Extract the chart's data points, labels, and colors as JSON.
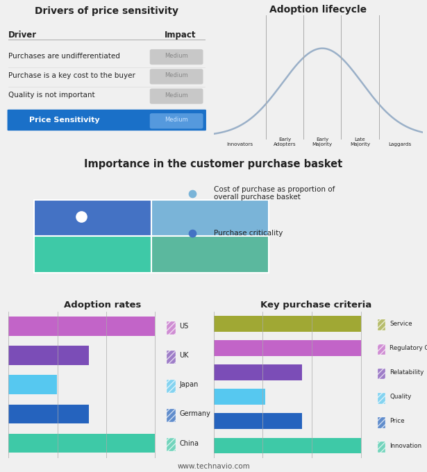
{
  "top_left_title": "Drivers of price sensitivity",
  "top_right_title": "Adoption lifecycle",
  "middle_title": "Importance in the customer purchase basket",
  "bottom_left_title": "Adoption rates",
  "bottom_right_title": "Key purchase criteria",
  "footer": "www.technavio.com",
  "drivers": [
    {
      "label": "Purchases are undifferentiated",
      "impact": "Medium"
    },
    {
      "label": "Purchase is a key cost to the buyer",
      "impact": "Medium"
    },
    {
      "label": "Quality is not important",
      "impact": "Medium"
    }
  ],
  "price_sensitivity_label": "Price Sensitivity",
  "price_sensitivity_value": "Medium",
  "lifecycle_labels": [
    "Innovators",
    "Early\nAdopters",
    "Early\nMajority",
    "Late\nMajority",
    "Laggards"
  ],
  "basket_legend": [
    {
      "label": "Cost of purchase as proportion of\noverall purchase basket",
      "color": "#7ab4d8"
    },
    {
      "label": "Purchase criticality",
      "color": "#4472c4"
    }
  ],
  "adoption_categories": [
    "China",
    "Germany",
    "Japan",
    "UK",
    "US"
  ],
  "adoption_values": [
    100,
    55,
    33,
    55,
    100
  ],
  "adoption_colors": [
    "#3ec9a7",
    "#2563be",
    "#56c8f0",
    "#7b4db7",
    "#c264c8"
  ],
  "criteria_categories": [
    "Innovation",
    "Price",
    "Quality",
    "Relatability",
    "Regulatory Compliance",
    "Service"
  ],
  "criteria_values": [
    100,
    60,
    35,
    60,
    100,
    100
  ],
  "criteria_colors": [
    "#3ec9a7",
    "#2563be",
    "#56c8f0",
    "#7b4db7",
    "#c264c8",
    "#a0a834"
  ],
  "bg_top": "#f5f5f5",
  "bg_middle": "#dce8f4",
  "bg_bottom": "#e8e8e8",
  "header_blue": "#1a70c8",
  "text_dark": "#222222"
}
